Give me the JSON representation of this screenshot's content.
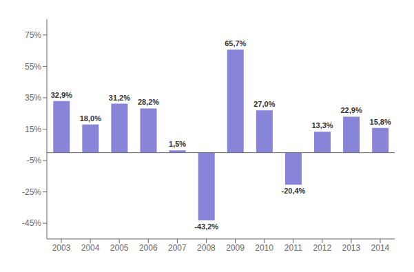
{
  "chart_data": {
    "type": "bar",
    "categories": [
      "2003",
      "2004",
      "2005",
      "2006",
      "2007",
      "2008",
      "2009",
      "2010",
      "2011",
      "2012",
      "2013",
      "2014"
    ],
    "values": [
      32.9,
      18.0,
      31.2,
      28.2,
      1.5,
      -43.2,
      65.7,
      27.0,
      -20.4,
      13.3,
      22.9,
      15.8
    ],
    "value_labels": [
      "32,9%",
      "18,0%",
      "31,2%",
      "28,2%",
      "1,5%",
      "-43,2%",
      "65,7%",
      "27,0%",
      "-20,4%",
      "13,3%",
      "22,9%",
      "15,8%"
    ],
    "color": "#8884d8",
    "ylim": [
      -55,
      85
    ],
    "yticks": [
      {
        "value": -45,
        "label": "-45%"
      },
      {
        "value": -25,
        "label": "-25%"
      },
      {
        "value": -5,
        "label": "-5%"
      },
      {
        "value": 15,
        "label": "15%"
      },
      {
        "value": 35,
        "label": "35%"
      },
      {
        "value": 55,
        "label": "55%"
      },
      {
        "value": 75,
        "label": "75%"
      }
    ],
    "grid": false,
    "data_labels": true
  }
}
